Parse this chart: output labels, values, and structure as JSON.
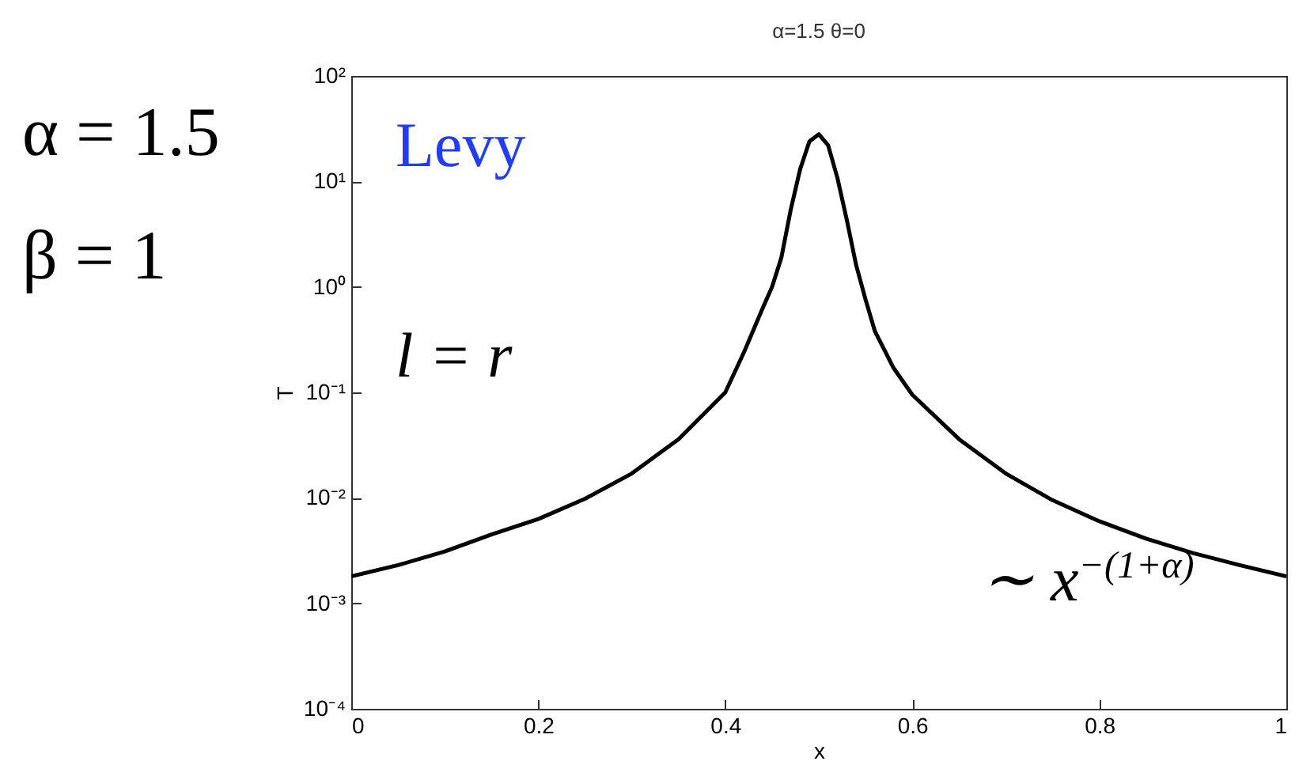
{
  "chart_data": {
    "type": "line",
    "title": "α=1.5    θ=0",
    "xlabel": "x",
    "ylabel": "T",
    "log": "y",
    "annotations": [
      "α = 1.5",
      "β = 1",
      "Levy",
      "l = r",
      "∼ x$^{−(1+α)}$"
    ],
    "x": [
      0,
      0.05,
      0.1,
      0.15,
      0.2,
      0.25,
      0.3,
      0.35,
      0.4,
      0.42,
      0.44,
      0.45,
      0.46,
      0.47,
      0.48,
      0.49,
      0.5,
      0.51,
      0.52,
      0.53,
      0.54,
      0.55,
      0.56,
      0.58,
      0.6,
      0.65,
      0.7,
      0.75,
      0.8,
      0.85,
      0.9,
      0.95,
      1
    ],
    "series": [
      {
        "color": "#000000",
        "values": [
          0.0018,
          0.0023,
          0.0031,
          0.0045,
          0.0063,
          0.0098,
          0.017,
          0.036,
          0.1,
          0.24,
          0.63,
          1.0,
          1.9,
          5.4,
          13,
          24,
          28,
          22,
          10.7,
          4.3,
          1.6,
          0.76,
          0.38,
          0.17,
          0.095,
          0.036,
          0.017,
          0.0095,
          0.006,
          0.0041,
          0.003,
          0.0023,
          0.0018
        ]
      }
    ],
    "xlim": [
      0,
      1
    ],
    "xticks": [
      0,
      0.2,
      0.4,
      0.6,
      0.8,
      1
    ],
    "ylim": [
      0.0001,
      100
    ],
    "yticks": [
      {
        "value": 0.0001,
        "label": "10⁻⁴"
      },
      {
        "value": 0.001,
        "label": "10⁻³"
      },
      {
        "value": 0.01,
        "label": "10⁻²"
      },
      {
        "value": 0.1,
        "label": "10⁻¹"
      },
      {
        "value": 1,
        "label": "10⁰"
      },
      {
        "value": 10,
        "label": "10¹"
      },
      {
        "value": 100,
        "label": "10²"
      }
    ]
  }
}
